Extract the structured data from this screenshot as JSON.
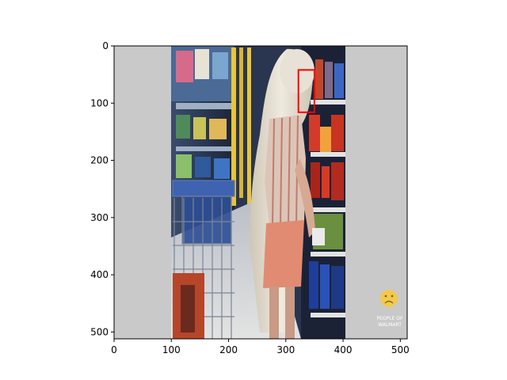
{
  "figure": {
    "x_axis": {
      "ticks": [
        0,
        100,
        200,
        300,
        400,
        500
      ],
      "range": [
        0,
        512
      ]
    },
    "y_axis": {
      "ticks": [
        0,
        100,
        200,
        300,
        400,
        500
      ],
      "range": [
        0,
        512
      ],
      "inverted": true
    },
    "grid": false
  },
  "image": {
    "description_colors": {
      "side_padding": "#c9c9c9",
      "shelf_dark": "#1f2a44",
      "floor": "#d8d8d8",
      "skirt": "#e48a72",
      "top_stripes": "#d9c3b6",
      "fur": "#e6e1d6",
      "cart": "#6f7d8f"
    },
    "photo_extent_data": {
      "x": [
        100,
        405
      ],
      "y": [
        0,
        512
      ]
    }
  },
  "annotation_box": {
    "color": "#ff0000",
    "x": [
      322,
      350
    ],
    "y": [
      42,
      116
    ]
  },
  "watermark": {
    "line1": "PEOPLE OF",
    "line2": "WALMART",
    "icon": "sad-face-icon"
  }
}
